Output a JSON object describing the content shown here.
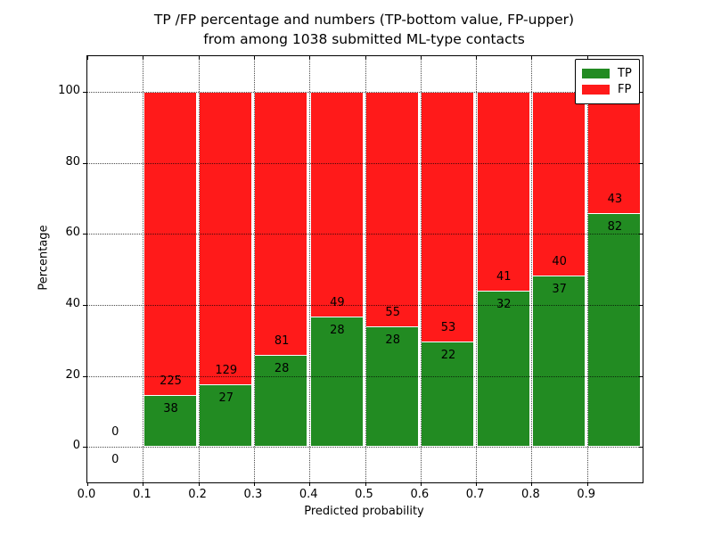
{
  "chart_data": {
    "type": "bar",
    "stacked": true,
    "normalized": "each non-empty bar stacks to 100%",
    "title_line1": "TP /FP percentage and numbers (TP-bottom value, FP-upper)",
    "title_line2": "from among 1038 submitted ML-type contacts",
    "xlabel": "Predicted probability",
    "ylabel": "Percentage",
    "x_tick_labels": [
      "0.0",
      "0.1",
      "0.2",
      "0.3",
      "0.4",
      "0.5",
      "0.6",
      "0.7",
      "0.8",
      "0.9"
    ],
    "x_tick_values": [
      0.0,
      0.1,
      0.2,
      0.3,
      0.4,
      0.5,
      0.6,
      0.7,
      0.8,
      0.9
    ],
    "y_tick_labels": [
      "0",
      "20",
      "40",
      "60",
      "80",
      "100"
    ],
    "y_tick_values": [
      0,
      20,
      40,
      60,
      80,
      100
    ],
    "xlim": [
      0.0,
      1.0
    ],
    "ylim": [
      -10,
      110
    ],
    "grid": {
      "style": "dotted",
      "axes": "both",
      "above_bars": true
    },
    "legend_position": "upper right",
    "bin_width": 0.1,
    "bar_width": 0.097,
    "categories": [
      "0.0-0.1",
      "0.1-0.2",
      "0.2-0.3",
      "0.3-0.4",
      "0.4-0.5",
      "0.5-0.6",
      "0.6-0.7",
      "0.7-0.8",
      "0.8-0.9",
      "0.9-1.0"
    ],
    "bin_starts": [
      0.0,
      0.1,
      0.2,
      0.3,
      0.4,
      0.5,
      0.6,
      0.7,
      0.8,
      0.9
    ],
    "series": [
      {
        "name": "TP",
        "color": "#228b22",
        "position": "bottom",
        "counts": [
          0,
          38,
          27,
          28,
          28,
          28,
          22,
          32,
          37,
          82
        ]
      },
      {
        "name": "FP",
        "color": "#ff1a1a",
        "position": "top",
        "counts": [
          0,
          225,
          129,
          81,
          49,
          55,
          53,
          41,
          40,
          43
        ]
      }
    ],
    "colors": {
      "tp": "#228b22",
      "fp": "#ff1a1a",
      "edge": "#ffffff",
      "text": "#000000",
      "spine": "#000000"
    }
  },
  "legend": {
    "items": [
      {
        "label": "TP",
        "color": "#228b22"
      },
      {
        "label": "FP",
        "color": "#ff1a1a"
      }
    ]
  }
}
